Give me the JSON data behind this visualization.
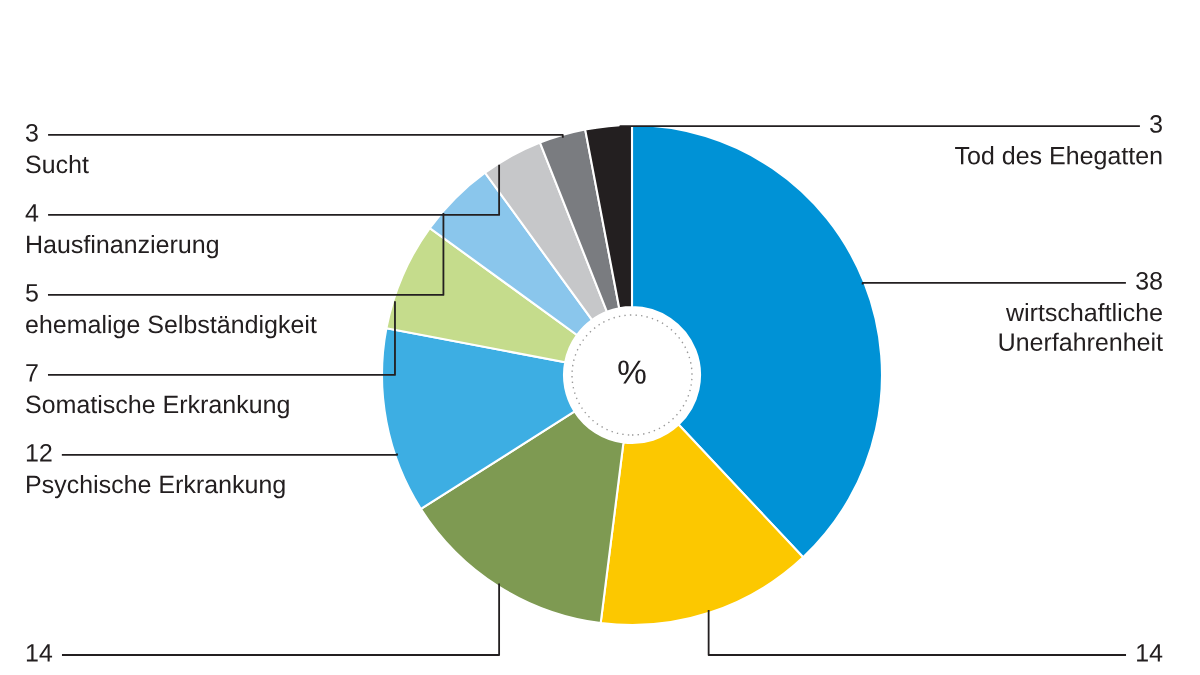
{
  "chart_data": {
    "type": "donut",
    "categories": [
      "wirtschaftliche\nUnerfahrenheit",
      null,
      null,
      "Psychische Erkrankung",
      "Somatische Erkrankung",
      "ehemalige Selbständigkeit",
      "Hausfinanzierung",
      "Sucht",
      "Tod des Ehegatten"
    ],
    "values": [
      38,
      14,
      14,
      12,
      7,
      5,
      4,
      3,
      3
    ],
    "colors": [
      "#0092d6",
      "#fcc800",
      "#7e9a52",
      "#3daee3",
      "#c5dc8c",
      "#8ac6ec",
      "#c6c7c9",
      "#7a7c80",
      "#231f20"
    ],
    "data_labels": true,
    "annotations": [
      "%"
    ]
  }
}
